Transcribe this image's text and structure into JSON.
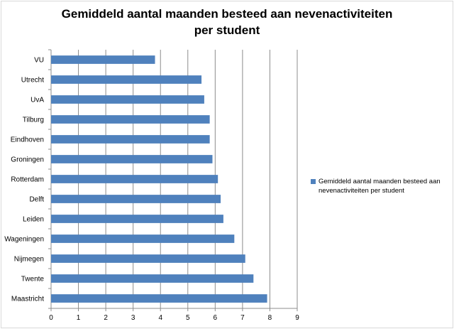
{
  "chart_data": {
    "type": "bar",
    "orientation": "horizontal",
    "title_lines": [
      "Gemiddeld aantal maanden besteed aan nevenactiviteiten",
      "per student"
    ],
    "categories": [
      "VU",
      "Utrecht",
      "UvA",
      "Tilburg",
      "Eindhoven",
      "Groningen",
      "Rotterdam",
      "Delft",
      "Leiden",
      "Wageningen",
      "Nijmegen",
      "Twente",
      "Maastricht"
    ],
    "series": [
      {
        "name": "Gemiddeld aantal maanden besteed aan nevenactiviteiten per student",
        "values": [
          3.8,
          5.5,
          5.6,
          5.8,
          5.8,
          5.9,
          6.1,
          6.2,
          6.3,
          6.7,
          7.1,
          7.4,
          7.9
        ],
        "color": "#4f81bd"
      }
    ],
    "xlim": [
      0,
      9
    ],
    "xticks": [
      "0",
      "1",
      "2",
      "3",
      "4",
      "5",
      "6",
      "7",
      "8",
      "9"
    ],
    "grid": true,
    "legend_position": "right"
  }
}
